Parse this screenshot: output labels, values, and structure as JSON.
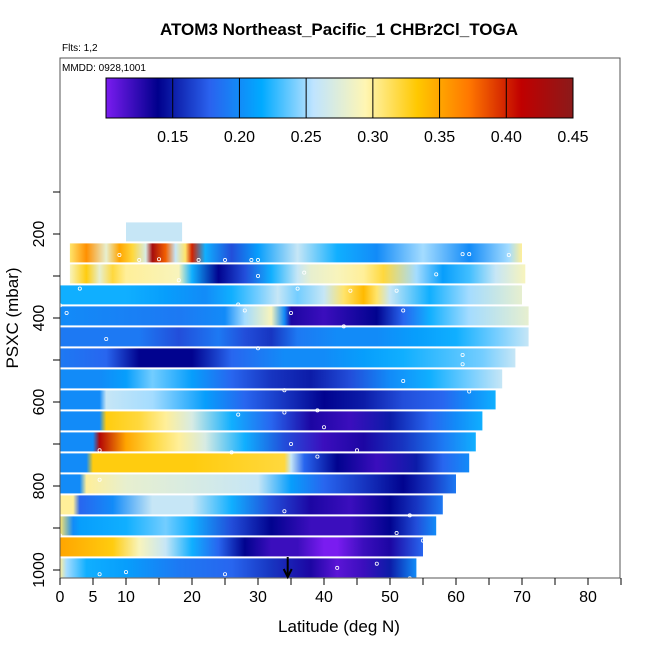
{
  "chart_data": {
    "type": "heatmap",
    "title": "ATOM3 Northeast_Pacific_1 CHBr2Cl_TOGA",
    "notes": [
      "Flts: 1,2",
      "MMDD: 0928,1001"
    ],
    "xlabel": "Latitude (deg N)",
    "ylabel": "PSXC (mbar)",
    "xlim": [
      0,
      85
    ],
    "ylim": [
      1000,
      0
    ],
    "x_ticks": [
      0,
      5,
      10,
      20,
      30,
      40,
      50,
      60,
      70,
      80
    ],
    "y_ticks": [
      200,
      400,
      600,
      800,
      1000
    ],
    "colorbar": {
      "ticks": [
        0.15,
        0.2,
        0.25,
        0.3,
        0.35,
        0.4,
        0.45
      ],
      "range": [
        0.1,
        0.45
      ],
      "colors": [
        "#7a1cf0",
        "#00008c",
        "#2a62ee",
        "#00aaff",
        "#bfe4ff",
        "#fff6b3",
        "#ffc800",
        "#ff7700",
        "#c00000",
        "#8b1a1a"
      ]
    },
    "marker_latitude": 34.5,
    "rows": [
      {
        "p": 195,
        "x0": 10,
        "x1": 18.5,
        "v": 0.26
      },
      {
        "p": 245,
        "x0": 1.5,
        "x1": 70,
        "knots": [
          [
            1.5,
            0.31
          ],
          [
            4,
            0.36
          ],
          [
            7,
            0.28
          ],
          [
            9,
            0.35
          ],
          [
            11,
            0.32
          ],
          [
            13,
            0.27
          ],
          [
            14,
            0.43
          ],
          [
            16,
            0.38
          ],
          [
            17.5,
            0.26
          ],
          [
            19,
            0.31
          ],
          [
            20,
            0.4
          ],
          [
            22,
            0.22
          ],
          [
            26,
            0.17
          ],
          [
            30,
            0.21
          ],
          [
            36,
            0.26
          ],
          [
            42,
            0.22
          ],
          [
            48,
            0.2
          ],
          [
            55,
            0.25
          ],
          [
            62,
            0.2
          ],
          [
            68,
            0.25
          ],
          [
            70,
            0.3
          ]
        ]
      },
      {
        "p": 295,
        "x0": 1.5,
        "x1": 70.5,
        "knots": [
          [
            1.5,
            0.29
          ],
          [
            4,
            0.33
          ],
          [
            6,
            0.28
          ],
          [
            8,
            0.32
          ],
          [
            10,
            0.3
          ],
          [
            18,
            0.29
          ],
          [
            20,
            0.22
          ],
          [
            24,
            0.14
          ],
          [
            28,
            0.17
          ],
          [
            32,
            0.22
          ],
          [
            36,
            0.26
          ],
          [
            38,
            0.28
          ],
          [
            42,
            0.29
          ],
          [
            46,
            0.3
          ],
          [
            49,
            0.32
          ],
          [
            54,
            0.25
          ],
          [
            58,
            0.21
          ],
          [
            62,
            0.23
          ],
          [
            66,
            0.26
          ],
          [
            70.5,
            0.29
          ]
        ]
      },
      {
        "p": 345,
        "x0": 0,
        "x1": 70,
        "knots": [
          [
            0,
            0.22
          ],
          [
            10,
            0.22
          ],
          [
            16,
            0.21
          ],
          [
            22,
            0.2
          ],
          [
            26,
            0.22
          ],
          [
            30,
            0.24
          ],
          [
            33,
            0.26
          ],
          [
            36,
            0.24
          ],
          [
            40,
            0.26
          ],
          [
            43,
            0.31
          ],
          [
            46,
            0.34
          ],
          [
            48,
            0.31
          ],
          [
            50,
            0.26
          ],
          [
            56,
            0.22
          ],
          [
            62,
            0.25
          ],
          [
            70,
            0.28
          ]
        ]
      },
      {
        "p": 395,
        "x0": 0,
        "x1": 71,
        "knots": [
          [
            0,
            0.2
          ],
          [
            18,
            0.19
          ],
          [
            25,
            0.2
          ],
          [
            28,
            0.25
          ],
          [
            32,
            0.29
          ],
          [
            34,
            0.2
          ],
          [
            35,
            0.13
          ],
          [
            40,
            0.12
          ],
          [
            48,
            0.14
          ],
          [
            52,
            0.18
          ],
          [
            56,
            0.22
          ],
          [
            62,
            0.25
          ],
          [
            71,
            0.28
          ]
        ]
      },
      {
        "p": 445,
        "x0": 0,
        "x1": 71,
        "knots": [
          [
            0,
            0.19
          ],
          [
            12,
            0.19
          ],
          [
            18,
            0.17
          ],
          [
            24,
            0.19
          ],
          [
            28,
            0.17
          ],
          [
            32,
            0.16
          ],
          [
            36,
            0.19
          ],
          [
            42,
            0.2
          ],
          [
            48,
            0.2
          ],
          [
            54,
            0.21
          ],
          [
            60,
            0.22
          ],
          [
            66,
            0.24
          ],
          [
            71,
            0.26
          ]
        ]
      },
      {
        "p": 495,
        "x0": 0,
        "x1": 69,
        "knots": [
          [
            0,
            0.19
          ],
          [
            7,
            0.18
          ],
          [
            12,
            0.14
          ],
          [
            20,
            0.14
          ],
          [
            26,
            0.18
          ],
          [
            34,
            0.2
          ],
          [
            40,
            0.2
          ],
          [
            46,
            0.21
          ],
          [
            52,
            0.22
          ],
          [
            58,
            0.23
          ],
          [
            64,
            0.24
          ],
          [
            69,
            0.26
          ]
        ]
      },
      {
        "p": 545,
        "x0": 0,
        "x1": 67,
        "knots": [
          [
            0,
            0.2
          ],
          [
            6,
            0.2
          ],
          [
            10,
            0.21
          ],
          [
            14,
            0.24
          ],
          [
            20,
            0.21
          ],
          [
            26,
            0.18
          ],
          [
            32,
            0.16
          ],
          [
            38,
            0.15
          ],
          [
            44,
            0.17
          ],
          [
            50,
            0.2
          ],
          [
            56,
            0.22
          ],
          [
            62,
            0.24
          ],
          [
            67,
            0.26
          ]
        ]
      },
      {
        "p": 595,
        "x0": 0,
        "x1": 66,
        "knots": [
          [
            0,
            0.2
          ],
          [
            6,
            0.2
          ],
          [
            7,
            0.26
          ],
          [
            14,
            0.25
          ],
          [
            22,
            0.21
          ],
          [
            28,
            0.18
          ],
          [
            34,
            0.16
          ],
          [
            40,
            0.14
          ],
          [
            46,
            0.15
          ],
          [
            52,
            0.17
          ],
          [
            58,
            0.18
          ],
          [
            62,
            0.2
          ],
          [
            66,
            0.22
          ]
        ]
      },
      {
        "p": 645,
        "x0": 0,
        "x1": 64,
        "knots": [
          [
            0,
            0.2
          ],
          [
            6,
            0.2
          ],
          [
            7,
            0.33
          ],
          [
            12,
            0.32
          ],
          [
            16,
            0.3
          ],
          [
            20,
            0.27
          ],
          [
            26,
            0.22
          ],
          [
            32,
            0.18
          ],
          [
            38,
            0.13
          ],
          [
            44,
            0.12
          ],
          [
            50,
            0.15
          ],
          [
            56,
            0.18
          ],
          [
            60,
            0.2
          ],
          [
            64,
            0.22
          ]
        ]
      },
      {
        "p": 695,
        "x0": 0,
        "x1": 63,
        "knots": [
          [
            0,
            0.2
          ],
          [
            5,
            0.2
          ],
          [
            6,
            0.42
          ],
          [
            10,
            0.35
          ],
          [
            14,
            0.32
          ],
          [
            18,
            0.3
          ],
          [
            22,
            0.27
          ],
          [
            28,
            0.22
          ],
          [
            34,
            0.17
          ],
          [
            40,
            0.12
          ],
          [
            46,
            0.13
          ],
          [
            52,
            0.16
          ],
          [
            58,
            0.19
          ],
          [
            63,
            0.22
          ]
        ]
      },
      {
        "p": 745,
        "x0": 0,
        "x1": 62,
        "knots": [
          [
            0,
            0.2
          ],
          [
            4,
            0.2
          ],
          [
            5,
            0.33
          ],
          [
            20,
            0.33
          ],
          [
            34,
            0.32
          ],
          [
            35,
            0.26
          ],
          [
            37,
            0.18
          ],
          [
            42,
            0.14
          ],
          [
            48,
            0.12
          ],
          [
            54,
            0.15
          ],
          [
            58,
            0.18
          ],
          [
            62,
            0.2
          ]
        ]
      },
      {
        "p": 795,
        "x0": 0,
        "x1": 60,
        "knots": [
          [
            0,
            0.2
          ],
          [
            3,
            0.2
          ],
          [
            4,
            0.3
          ],
          [
            10,
            0.28
          ],
          [
            20,
            0.27
          ],
          [
            30,
            0.26
          ],
          [
            35,
            0.21
          ],
          [
            40,
            0.18
          ],
          [
            46,
            0.16
          ],
          [
            52,
            0.14
          ],
          [
            56,
            0.16
          ],
          [
            60,
            0.19
          ]
        ]
      },
      {
        "p": 845,
        "x0": 0,
        "x1": 58,
        "knots": [
          [
            0,
            0.3
          ],
          [
            2,
            0.3
          ],
          [
            3,
            0.18
          ],
          [
            8,
            0.2
          ],
          [
            14,
            0.26
          ],
          [
            20,
            0.26
          ],
          [
            26,
            0.22
          ],
          [
            32,
            0.17
          ],
          [
            38,
            0.13
          ],
          [
            44,
            0.12
          ],
          [
            50,
            0.14
          ],
          [
            54,
            0.16
          ],
          [
            58,
            0.19
          ]
        ]
      },
      {
        "p": 895,
        "x0": 0,
        "x1": 57,
        "knots": [
          [
            0,
            0.31
          ],
          [
            2,
            0.2
          ],
          [
            3,
            0.21
          ],
          [
            10,
            0.22
          ],
          [
            16,
            0.24
          ],
          [
            20,
            0.22
          ],
          [
            26,
            0.17
          ],
          [
            32,
            0.14
          ],
          [
            38,
            0.12
          ],
          [
            44,
            0.12
          ],
          [
            50,
            0.14
          ],
          [
            54,
            0.17
          ],
          [
            57,
            0.2
          ]
        ]
      },
      {
        "p": 945,
        "x0": 0,
        "x1": 55,
        "knots": [
          [
            0,
            0.35
          ],
          [
            8,
            0.33
          ],
          [
            12,
            0.29
          ],
          [
            16,
            0.26
          ],
          [
            20,
            0.22
          ],
          [
            24,
            0.18
          ],
          [
            28,
            0.14
          ],
          [
            32,
            0.12
          ],
          [
            36,
            0.12
          ],
          [
            40,
            0.1
          ],
          [
            42,
            0.09
          ],
          [
            46,
            0.12
          ],
          [
            50,
            0.13
          ],
          [
            55,
            0.18
          ]
        ]
      },
      {
        "p": 995,
        "x0": 0,
        "x1": 54,
        "knots": [
          [
            0,
            0.3
          ],
          [
            1,
            0.25
          ],
          [
            4,
            0.22
          ],
          [
            10,
            0.21
          ],
          [
            18,
            0.19
          ],
          [
            26,
            0.18
          ],
          [
            32,
            0.16
          ],
          [
            38,
            0.13
          ],
          [
            42,
            0.11
          ],
          [
            46,
            0.12
          ],
          [
            50,
            0.15
          ],
          [
            54,
            0.2
          ]
        ]
      }
    ],
    "sample_points": [
      [
        9,
        250
      ],
      [
        12,
        262
      ],
      [
        15,
        260
      ],
      [
        21,
        262
      ],
      [
        25,
        262
      ],
      [
        29,
        262
      ],
      [
        30,
        262
      ],
      [
        61,
        248
      ],
      [
        62,
        248
      ],
      [
        68,
        250
      ],
      [
        18,
        310
      ],
      [
        30,
        300
      ],
      [
        37,
        292
      ],
      [
        57,
        296
      ],
      [
        3,
        330
      ],
      [
        36,
        330
      ],
      [
        44,
        335
      ],
      [
        51,
        335
      ],
      [
        0,
        370
      ],
      [
        27,
        368
      ],
      [
        28,
        382
      ],
      [
        35,
        388
      ],
      [
        52,
        382
      ],
      [
        1,
        388
      ],
      [
        43,
        420
      ],
      [
        7,
        450
      ],
      [
        30,
        472
      ],
      [
        61,
        488
      ],
      [
        61,
        510
      ],
      [
        70,
        510
      ],
      [
        34,
        572
      ],
      [
        52,
        550
      ],
      [
        62,
        575
      ],
      [
        34,
        625
      ],
      [
        39,
        620
      ],
      [
        27,
        630
      ],
      [
        40,
        660
      ],
      [
        35,
        700
      ],
      [
        45,
        715
      ],
      [
        39,
        730
      ],
      [
        26,
        720
      ],
      [
        6,
        715
      ],
      [
        6,
        785
      ],
      [
        34,
        860
      ],
      [
        53,
        870
      ],
      [
        51,
        912
      ],
      [
        0,
        918
      ],
      [
        55,
        930
      ],
      [
        42,
        995
      ],
      [
        48,
        985
      ],
      [
        53,
        1020
      ],
      [
        39,
        1030
      ],
      [
        10,
        1005
      ],
      [
        25,
        1010
      ],
      [
        6,
        1010
      ],
      [
        0,
        1030
      ]
    ]
  }
}
